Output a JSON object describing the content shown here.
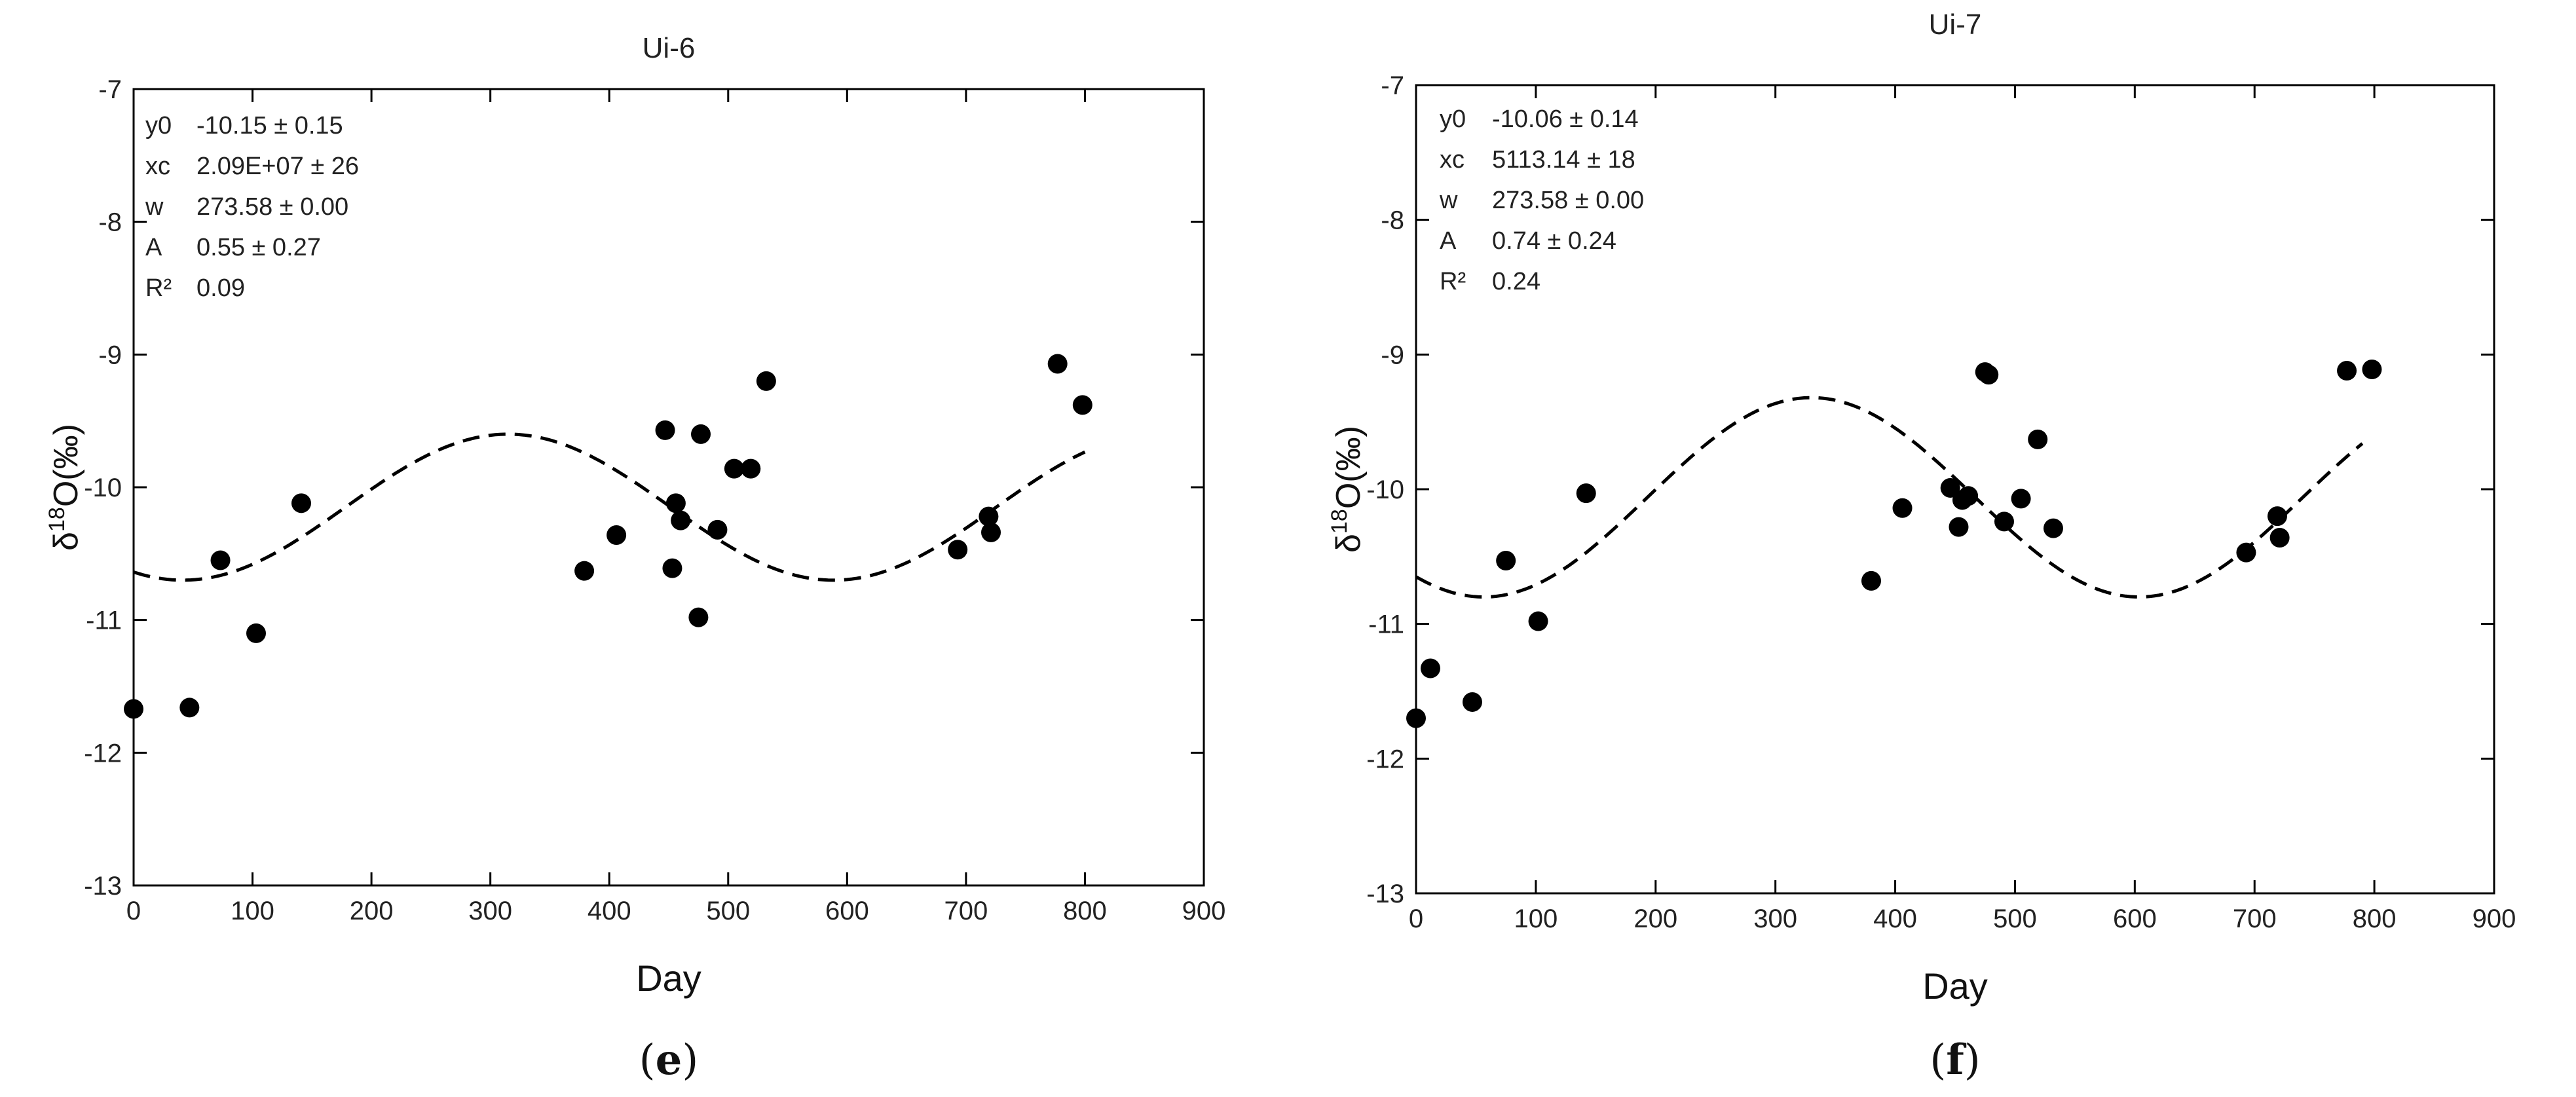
{
  "chart_data": [
    {
      "type": "scatter",
      "panel": "e",
      "title": "Ui-6",
      "xlabel": "Day",
      "ylabel_main": "δ",
      "ylabel_sup": "18",
      "ylabel_rest": "O(‰)",
      "xlim": [
        0,
        900
      ],
      "ylim": [
        -13,
        -7
      ],
      "xticks": [
        0,
        100,
        200,
        300,
        400,
        500,
        600,
        700,
        800,
        900
      ],
      "yticks": [
        -13,
        -12,
        -11,
        -10,
        -9,
        -8,
        -7
      ],
      "grid": false,
      "annotations": [
        {
          "label": "y0",
          "value": "-10.15 ± 0.15"
        },
        {
          "label": "xc",
          "value": "2.09E+07 ± 26"
        },
        {
          "label": "w",
          "value": "273.58 ± 0.00"
        },
        {
          "label": "A",
          "value": "0.55 ± 0.27"
        },
        {
          "label": "R²",
          "value": "0.09"
        }
      ],
      "fit": {
        "model": "sine",
        "y0": -10.15,
        "A": 0.55,
        "period_days": 547.16,
        "peak_day": 315,
        "style": "dashed",
        "x_range": [
          0,
          800
        ]
      },
      "points": [
        {
          "x": 0,
          "y": -11.67
        },
        {
          "x": 47,
          "y": -11.66
        },
        {
          "x": 73,
          "y": -10.55
        },
        {
          "x": 103,
          "y": -11.1
        },
        {
          "x": 141,
          "y": -10.12
        },
        {
          "x": 379,
          "y": -10.63
        },
        {
          "x": 406,
          "y": -10.36
        },
        {
          "x": 447,
          "y": -9.57
        },
        {
          "x": 453,
          "y": -10.61
        },
        {
          "x": 456,
          "y": -10.12
        },
        {
          "x": 460,
          "y": -10.25
        },
        {
          "x": 475,
          "y": -10.98
        },
        {
          "x": 477,
          "y": -9.6
        },
        {
          "x": 491,
          "y": -10.32
        },
        {
          "x": 505,
          "y": -9.86
        },
        {
          "x": 519,
          "y": -9.86
        },
        {
          "x": 532,
          "y": -9.2
        },
        {
          "x": 693,
          "y": -10.47
        },
        {
          "x": 719,
          "y": -10.22
        },
        {
          "x": 721,
          "y": -10.34
        },
        {
          "x": 777,
          "y": -9.07
        },
        {
          "x": 798,
          "y": -9.38
        }
      ]
    },
    {
      "type": "scatter",
      "panel": "f",
      "title": "Ui-7",
      "xlabel": "Day",
      "ylabel_main": "δ",
      "ylabel_sup": "18",
      "ylabel_rest": "O(‰)",
      "xlim": [
        0,
        900
      ],
      "ylim": [
        -13,
        -7
      ],
      "xticks": [
        0,
        100,
        200,
        300,
        400,
        500,
        600,
        700,
        800,
        900
      ],
      "yticks": [
        -13,
        -12,
        -11,
        -10,
        -9,
        -8,
        -7
      ],
      "grid": false,
      "annotations": [
        {
          "label": "y0",
          "value": "-10.06 ± 0.14"
        },
        {
          "label": "xc",
          "value": "5113.14 ± 18"
        },
        {
          "label": "w",
          "value": "273.58 ± 0.00"
        },
        {
          "label": "A",
          "value": "0.74 ± 0.24"
        },
        {
          "label": "R²",
          "value": "0.24"
        }
      ],
      "fit": {
        "model": "sine",
        "y0": -10.06,
        "A": 0.74,
        "period_days": 547.16,
        "peak_day": 330,
        "style": "dashed",
        "x_range": [
          0,
          790
        ]
      },
      "points": [
        {
          "x": 0,
          "y": -11.7
        },
        {
          "x": 12,
          "y": -11.33
        },
        {
          "x": 47,
          "y": -11.58
        },
        {
          "x": 75,
          "y": -10.53
        },
        {
          "x": 102,
          "y": -10.98
        },
        {
          "x": 142,
          "y": -10.03
        },
        {
          "x": 380,
          "y": -10.68
        },
        {
          "x": 406,
          "y": -10.14
        },
        {
          "x": 446,
          "y": -9.99
        },
        {
          "x": 453,
          "y": -10.28
        },
        {
          "x": 456,
          "y": -10.08
        },
        {
          "x": 461,
          "y": -10.05
        },
        {
          "x": 475,
          "y": -9.13
        },
        {
          "x": 478,
          "y": -9.15
        },
        {
          "x": 491,
          "y": -10.24
        },
        {
          "x": 505,
          "y": -10.07
        },
        {
          "x": 519,
          "y": -9.63
        },
        {
          "x": 532,
          "y": -10.29
        },
        {
          "x": 693,
          "y": -10.47
        },
        {
          "x": 719,
          "y": -10.2
        },
        {
          "x": 721,
          "y": -10.36
        },
        {
          "x": 777,
          "y": -9.12
        },
        {
          "x": 798,
          "y": -9.11
        }
      ]
    }
  ]
}
